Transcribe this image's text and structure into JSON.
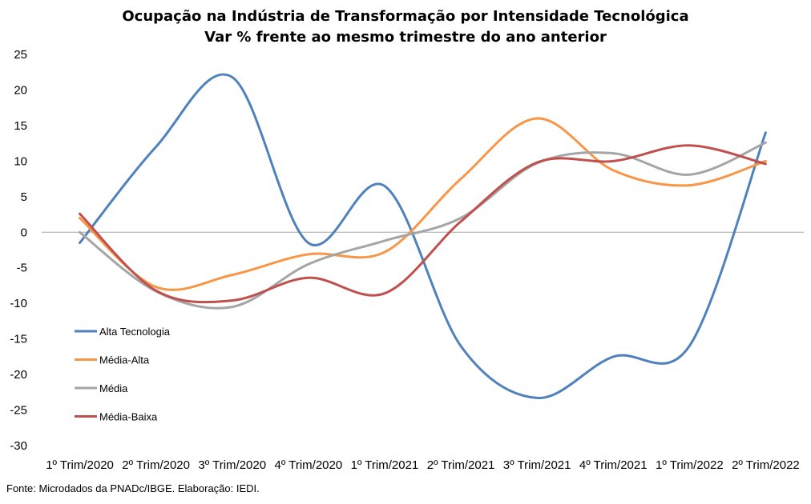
{
  "header": {
    "title": "Ocupação na Indústria de Transformação por Intensidade Tecnológica",
    "subtitle": "Var % frente ao mesmo trimestre do ano anterior"
  },
  "footer": {
    "source": "Fonte: Microdados da PNADc/IBGE. Elaboração: IEDI."
  },
  "chart_data": {
    "type": "line",
    "title": "Ocupação na Indústria de Transformação por Intensidade Tecnológica",
    "subtitle": "Var % frente ao mesmo trimestre do ano anterior",
    "xlabel": "",
    "ylabel": "",
    "categories": [
      "1º Trim/2020",
      "2º Trim/2020",
      "3º Trim/2020",
      "4º Trim/2020",
      "1º Trim/2021",
      "2º Trim/2021",
      "3º Trim/2021",
      "4º Trim/2021",
      "1º Trim/2022",
      "2º Trim/2022"
    ],
    "ylim": [
      -30,
      25
    ],
    "yticks": [
      25,
      20,
      15,
      10,
      5,
      0,
      -5,
      -10,
      -15,
      -20,
      -25,
      -30
    ],
    "grid": false,
    "zero_line": true,
    "legend_position": "left-bottom",
    "smooth": true,
    "series": [
      {
        "name": "Alta Tecnologia",
        "color": "#4F81BD",
        "values": [
          -1.5,
          12.0,
          21.8,
          -1.5,
          6.5,
          -16.0,
          -23.3,
          -17.5,
          -16.0,
          14.0
        ]
      },
      {
        "name": "Média-Alta",
        "color": "#F79646",
        "values": [
          2.0,
          -7.7,
          -6.0,
          -3.1,
          -2.8,
          7.5,
          16.0,
          8.7,
          6.6,
          10.0
        ]
      },
      {
        "name": "Média",
        "color": "#A5A5A5",
        "values": [
          0.0,
          -8.3,
          -10.5,
          -4.5,
          -1.2,
          2.0,
          9.7,
          11.1,
          8.1,
          12.6
        ]
      },
      {
        "name": "Média-Baixa",
        "color": "#C0504D",
        "values": [
          2.6,
          -8.2,
          -9.6,
          -6.4,
          -8.6,
          1.5,
          9.8,
          10.0,
          12.2,
          9.6
        ]
      }
    ]
  }
}
